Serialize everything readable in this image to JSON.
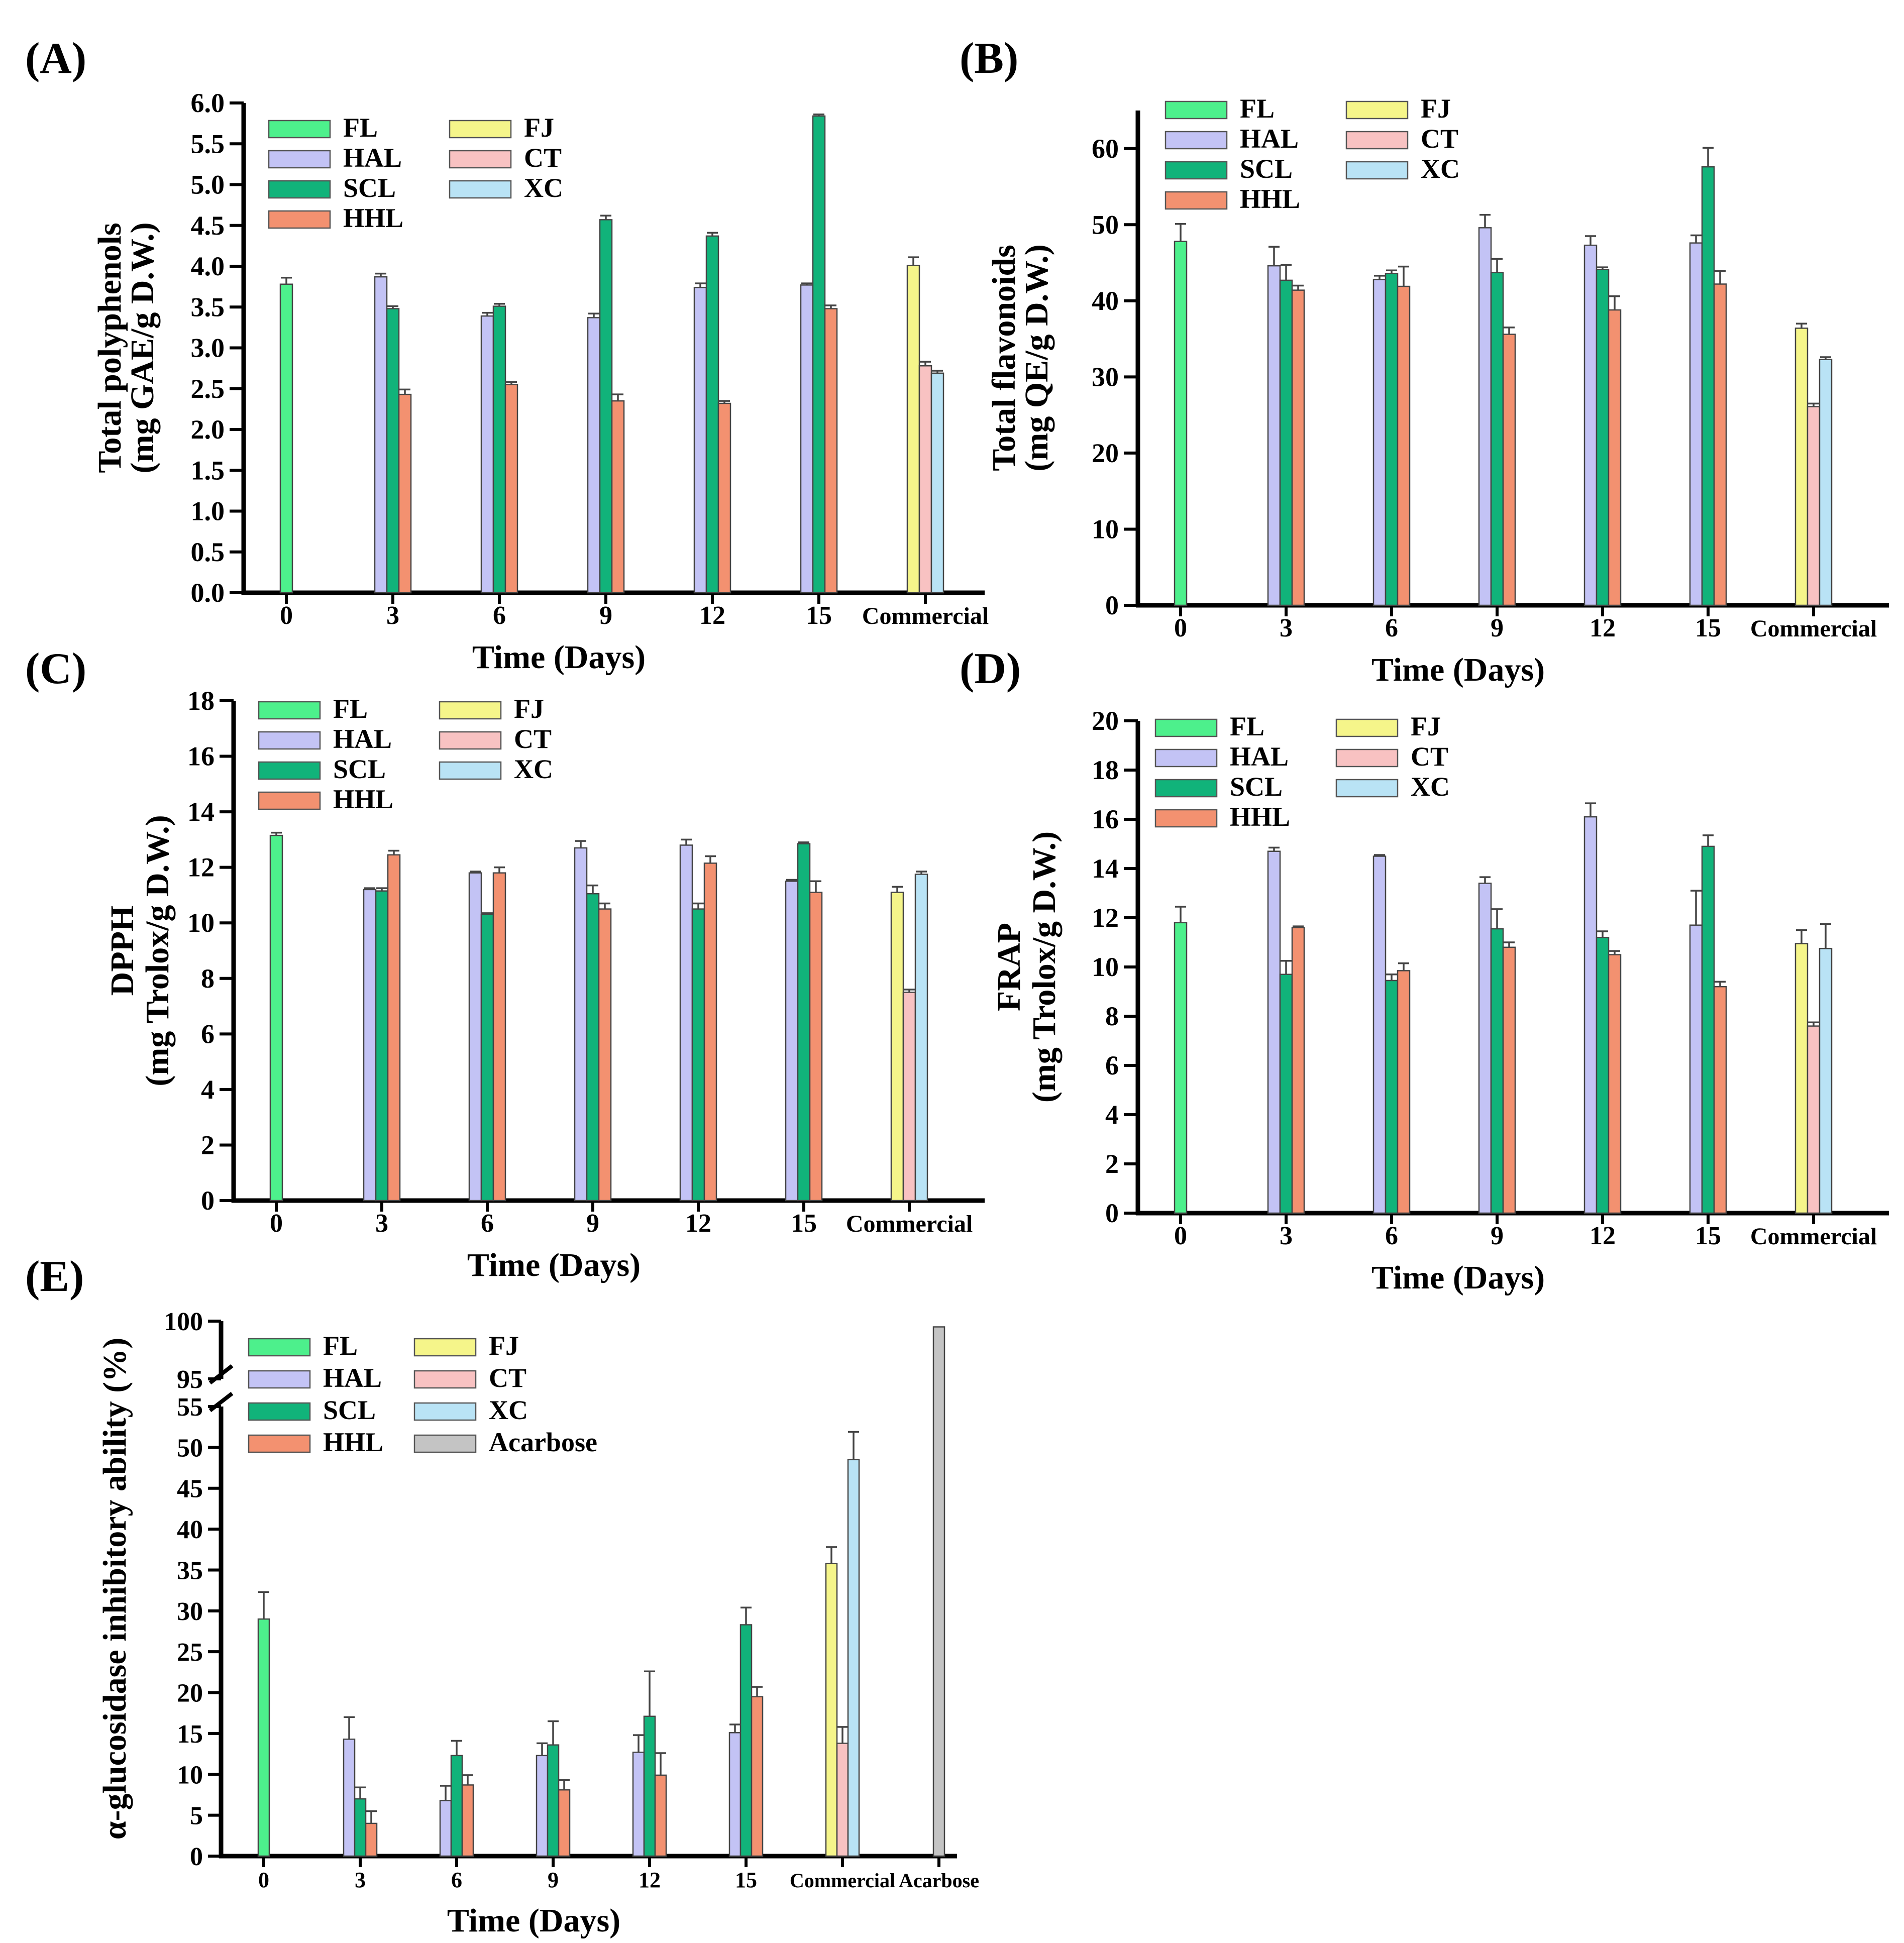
{
  "colors": {
    "FL": "#4df08c",
    "HAL": "#c3c3f5",
    "SCL": "#11b37a",
    "HHL": "#f39170",
    "FJ": "#f5f58a",
    "CT": "#f8c2c2",
    "XC": "#b9e3f5",
    "Acarbose": "#c4c4c4"
  },
  "chart_data": [
    {
      "panel": "(A)",
      "type": "bar",
      "title": "",
      "xlabel": "Time (Days)",
      "ylabel": [
        "Total polyphenols",
        "(mg GAE/g D.W.)"
      ],
      "ylim": [
        0,
        6
      ],
      "yticks": [
        "0.0",
        "0.5",
        "1.0",
        "1.5",
        "2.0",
        "2.5",
        "3.0",
        "3.5",
        "4.0",
        "4.5",
        "5.0",
        "5.5",
        "6.0"
      ],
      "categories": [
        "0",
        "3",
        "6",
        "9",
        "12",
        "15",
        "Commercial"
      ],
      "legend": {
        "position": "top-left",
        "entries": [
          "FL",
          "FJ",
          "HAL",
          "CT",
          "SCL",
          "XC",
          "HHL"
        ]
      },
      "groups": [
        {
          "bars": [
            {
              "s": "FL",
              "v": 3.78,
              "e": 0.08
            }
          ]
        },
        {
          "bars": [
            {
              "s": "HAL",
              "v": 3.87,
              "e": 0.04
            },
            {
              "s": "SCL",
              "v": 3.48,
              "e": 0.03
            },
            {
              "s": "HHL",
              "v": 2.43,
              "e": 0.06
            }
          ]
        },
        {
          "bars": [
            {
              "s": "HAL",
              "v": 3.39,
              "e": 0.04
            },
            {
              "s": "SCL",
              "v": 3.51,
              "e": 0.03
            },
            {
              "s": "HHL",
              "v": 2.55,
              "e": 0.03
            }
          ]
        },
        {
          "bars": [
            {
              "s": "HAL",
              "v": 3.37,
              "e": 0.05
            },
            {
              "s": "SCL",
              "v": 4.57,
              "e": 0.05
            },
            {
              "s": "HHL",
              "v": 2.35,
              "e": 0.08
            }
          ]
        },
        {
          "bars": [
            {
              "s": "HAL",
              "v": 3.74,
              "e": 0.05
            },
            {
              "s": "SCL",
              "v": 4.37,
              "e": 0.04
            },
            {
              "s": "HHL",
              "v": 2.32,
              "e": 0.03
            }
          ]
        },
        {
          "bars": [
            {
              "s": "HAL",
              "v": 3.77,
              "e": 0.02
            },
            {
              "s": "SCL",
              "v": 5.84,
              "e": 0.02
            },
            {
              "s": "HHL",
              "v": 3.48,
              "e": 0.04
            }
          ]
        },
        {
          "bars": [
            {
              "s": "FJ",
              "v": 4.01,
              "e": 0.1
            },
            {
              "s": "CT",
              "v": 2.78,
              "e": 0.05
            },
            {
              "s": "XC",
              "v": 2.69,
              "e": 0.03
            }
          ]
        }
      ]
    },
    {
      "panel": "(B)",
      "type": "bar",
      "title": "",
      "xlabel": "Time (Days)",
      "ylabel": [
        "Total flavonoids",
        "(mg QE/g D.W.)"
      ],
      "ylim": [
        0,
        65
      ],
      "yticks": [
        "0",
        "10",
        "20",
        "30",
        "40",
        "50",
        "60"
      ],
      "categories": [
        "0",
        "3",
        "6",
        "9",
        "12",
        "15",
        "Commercial"
      ],
      "legend": {
        "position": "top-left",
        "entries": [
          "FL",
          "FJ",
          "HAL",
          "CT",
          "SCL",
          "XC",
          "HHL"
        ]
      },
      "groups": [
        {
          "bars": [
            {
              "s": "FL",
              "v": 47.8,
              "e": 2.3
            }
          ]
        },
        {
          "bars": [
            {
              "s": "HAL",
              "v": 44.6,
              "e": 2.5
            },
            {
              "s": "SCL",
              "v": 42.7,
              "e": 2.0
            },
            {
              "s": "HHL",
              "v": 41.4,
              "e": 0.6
            }
          ]
        },
        {
          "bars": [
            {
              "s": "HAL",
              "v": 42.8,
              "e": 0.5
            },
            {
              "s": "SCL",
              "v": 43.6,
              "e": 0.4
            },
            {
              "s": "HHL",
              "v": 41.9,
              "e": 2.6
            }
          ]
        },
        {
          "bars": [
            {
              "s": "HAL",
              "v": 49.6,
              "e": 1.7
            },
            {
              "s": "SCL",
              "v": 43.7,
              "e": 1.8
            },
            {
              "s": "HHL",
              "v": 35.6,
              "e": 0.9
            }
          ]
        },
        {
          "bars": [
            {
              "s": "HAL",
              "v": 47.3,
              "e": 1.2
            },
            {
              "s": "SCL",
              "v": 44.1,
              "e": 0.3
            },
            {
              "s": "HHL",
              "v": 38.8,
              "e": 1.8
            }
          ]
        },
        {
          "bars": [
            {
              "s": "HAL",
              "v": 47.6,
              "e": 1.0
            },
            {
              "s": "SCL",
              "v": 57.6,
              "e": 2.5
            },
            {
              "s": "HHL",
              "v": 42.2,
              "e": 1.7
            }
          ]
        },
        {
          "bars": [
            {
              "s": "FJ",
              "v": 36.4,
              "e": 0.6
            },
            {
              "s": "CT",
              "v": 26.1,
              "e": 0.4
            },
            {
              "s": "XC",
              "v": 32.3,
              "e": 0.3
            }
          ]
        }
      ]
    },
    {
      "panel": "(C)",
      "type": "bar",
      "title": "",
      "xlabel": "Time (Days)",
      "ylabel": [
        "DPPH",
        "(mg Trolox/g D.W.)"
      ],
      "ylim": [
        0,
        18
      ],
      "yticks": [
        "0",
        "2",
        "4",
        "6",
        "8",
        "10",
        "12",
        "14",
        "16",
        "18"
      ],
      "categories": [
        "0",
        "3",
        "6",
        "9",
        "12",
        "15",
        "Commercial"
      ],
      "legend": {
        "position": "top-left",
        "entries": [
          "FL",
          "FJ",
          "HAL",
          "CT",
          "SCL",
          "XC",
          "HHL"
        ]
      },
      "groups": [
        {
          "bars": [
            {
              "s": "FL",
              "v": 13.15,
              "e": 0.1
            }
          ]
        },
        {
          "bars": [
            {
              "s": "HAL",
              "v": 11.2,
              "e": 0.05
            },
            {
              "s": "SCL",
              "v": 11.15,
              "e": 0.1
            },
            {
              "s": "HHL",
              "v": 12.45,
              "e": 0.15
            }
          ]
        },
        {
          "bars": [
            {
              "s": "HAL",
              "v": 11.8,
              "e": 0.05
            },
            {
              "s": "SCL",
              "v": 10.3,
              "e": 0.05
            },
            {
              "s": "HHL",
              "v": 11.8,
              "e": 0.2
            }
          ]
        },
        {
          "bars": [
            {
              "s": "HAL",
              "v": 12.7,
              "e": 0.25
            },
            {
              "s": "SCL",
              "v": 11.05,
              "e": 0.3
            },
            {
              "s": "HHL",
              "v": 10.5,
              "e": 0.2
            }
          ]
        },
        {
          "bars": [
            {
              "s": "HAL",
              "v": 12.8,
              "e": 0.2
            },
            {
              "s": "SCL",
              "v": 10.5,
              "e": 0.2
            },
            {
              "s": "HHL",
              "v": 12.15,
              "e": 0.25
            }
          ]
        },
        {
          "bars": [
            {
              "s": "HAL",
              "v": 11.5,
              "e": 0.05
            },
            {
              "s": "SCL",
              "v": 12.85,
              "e": 0.05
            },
            {
              "s": "HHL",
              "v": 11.1,
              "e": 0.4
            }
          ]
        },
        {
          "bars": [
            {
              "s": "FJ",
              "v": 11.1,
              "e": 0.2
            },
            {
              "s": "CT",
              "v": 7.5,
              "e": 0.1
            },
            {
              "s": "XC",
              "v": 11.75,
              "e": 0.1
            }
          ]
        }
      ]
    },
    {
      "panel": "(D)",
      "type": "bar",
      "title": "",
      "xlabel": "Time (Days)",
      "ylabel": [
        "FRAP",
        "(mg Trolox/g D.W.)"
      ],
      "ylim": [
        0,
        20
      ],
      "yticks": [
        "0",
        "2",
        "4",
        "6",
        "8",
        "10",
        "12",
        "14",
        "16",
        "18",
        "20"
      ],
      "categories": [
        "0",
        "3",
        "6",
        "9",
        "12",
        "15",
        "Commercial"
      ],
      "legend": {
        "position": "top-left",
        "entries": [
          "FL",
          "FJ",
          "HAL",
          "CT",
          "SCL",
          "XC",
          "HHL"
        ]
      },
      "groups": [
        {
          "bars": [
            {
              "s": "FL",
              "v": 11.8,
              "e": 0.65
            }
          ]
        },
        {
          "bars": [
            {
              "s": "HAL",
              "v": 14.7,
              "e": 0.15
            },
            {
              "s": "SCL",
              "v": 9.7,
              "e": 0.55
            },
            {
              "s": "HHL",
              "v": 11.6,
              "e": 0.05
            }
          ]
        },
        {
          "bars": [
            {
              "s": "HAL",
              "v": 14.5,
              "e": 0.05
            },
            {
              "s": "SCL",
              "v": 9.45,
              "e": 0.25
            },
            {
              "s": "HHL",
              "v": 9.85,
              "e": 0.3
            }
          ]
        },
        {
          "bars": [
            {
              "s": "HAL",
              "v": 13.4,
              "e": 0.25
            },
            {
              "s": "SCL",
              "v": 11.55,
              "e": 0.8
            },
            {
              "s": "HHL",
              "v": 10.8,
              "e": 0.2
            }
          ]
        },
        {
          "bars": [
            {
              "s": "HAL",
              "v": 16.1,
              "e": 0.55
            },
            {
              "s": "SCL",
              "v": 11.2,
              "e": 0.25
            },
            {
              "s": "HHL",
              "v": 10.5,
              "e": 0.15
            }
          ]
        },
        {
          "bars": [
            {
              "s": "HAL",
              "v": 11.7,
              "e": 1.4
            },
            {
              "s": "SCL",
              "v": 14.9,
              "e": 0.45
            },
            {
              "s": "HHL",
              "v": 9.2,
              "e": 0.2
            }
          ]
        },
        {
          "bars": [
            {
              "s": "FJ",
              "v": 10.95,
              "e": 0.55
            },
            {
              "s": "CT",
              "v": 7.6,
              "e": 0.15
            },
            {
              "s": "XC",
              "v": 10.75,
              "e": 1.0
            }
          ]
        }
      ]
    },
    {
      "panel": "(E)",
      "type": "bar",
      "title": "",
      "xlabel": "Time (Days)",
      "ylabel": [
        "α-glucosidase inhibitory ability (%)"
      ],
      "ylim": [
        0,
        55
      ],
      "ylim_upper": [
        95,
        100
      ],
      "axis_break": true,
      "yticks": [
        "0",
        "5",
        "10",
        "15",
        "20",
        "25",
        "30",
        "35",
        "40",
        "45",
        "50",
        "55"
      ],
      "yticks_upper": [
        "95",
        "100"
      ],
      "categories": [
        "0",
        "3",
        "6",
        "9",
        "12",
        "15",
        "Commercial",
        "Acarbose"
      ],
      "legend": {
        "position": "top-left",
        "entries": [
          "FL",
          "FJ",
          "HAL",
          "CT",
          "SCL",
          "XC",
          "HHL",
          "Acarbose"
        ]
      },
      "groups": [
        {
          "bars": [
            {
              "s": "FL",
              "v": 29.0,
              "e": 3.3
            }
          ]
        },
        {
          "bars": [
            {
              "s": "HAL",
              "v": 14.3,
              "e": 2.7
            },
            {
              "s": "SCL",
              "v": 7.0,
              "e": 1.4
            },
            {
              "s": "HHL",
              "v": 4.0,
              "e": 1.5
            }
          ]
        },
        {
          "bars": [
            {
              "s": "HAL",
              "v": 6.8,
              "e": 1.8
            },
            {
              "s": "SCL",
              "v": 12.3,
              "e": 1.8
            },
            {
              "s": "HHL",
              "v": 8.7,
              "e": 1.2
            }
          ]
        },
        {
          "bars": [
            {
              "s": "HAL",
              "v": 12.3,
              "e": 1.5
            },
            {
              "s": "SCL",
              "v": 13.6,
              "e": 2.9
            },
            {
              "s": "HHL",
              "v": 8.1,
              "e": 1.2
            }
          ]
        },
        {
          "bars": [
            {
              "s": "HAL",
              "v": 12.7,
              "e": 2.1
            },
            {
              "s": "SCL",
              "v": 17.1,
              "e": 5.5
            },
            {
              "s": "HHL",
              "v": 9.9,
              "e": 2.7
            }
          ]
        },
        {
          "bars": [
            {
              "s": "HAL",
              "v": 15.1,
              "e": 1.0
            },
            {
              "s": "SCL",
              "v": 28.3,
              "e": 2.1
            },
            {
              "s": "HHL",
              "v": 19.5,
              "e": 1.2
            }
          ]
        },
        {
          "bars": [
            {
              "s": "FJ",
              "v": 35.8,
              "e": 2.0
            },
            {
              "s": "CT",
              "v": 13.8,
              "e": 2.0
            },
            {
              "s": "XC",
              "v": 48.5,
              "e": 3.4
            }
          ]
        },
        {
          "bars": [
            {
              "s": "Acarbose",
              "v": 99.5,
              "e": 0
            }
          ]
        }
      ]
    }
  ]
}
